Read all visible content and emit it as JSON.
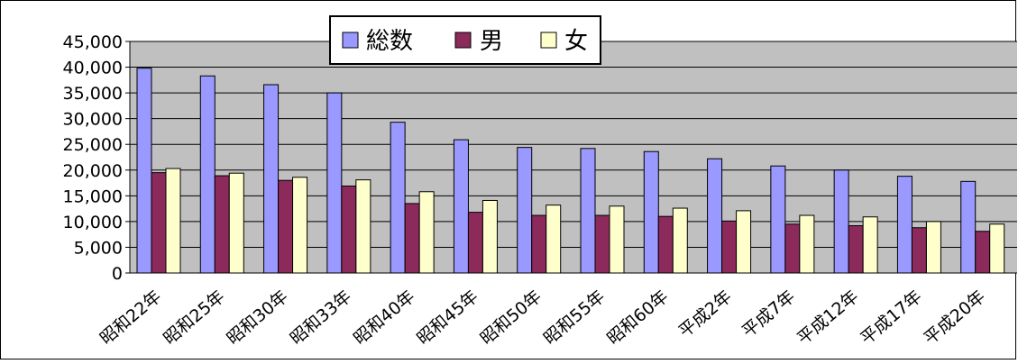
{
  "chart_data": {
    "type": "bar",
    "title": "",
    "xlabel": "",
    "ylabel": "",
    "ylim": [
      0,
      45000
    ],
    "y_ticks": [
      0,
      5000,
      10000,
      15000,
      20000,
      25000,
      30000,
      35000,
      40000,
      45000
    ],
    "y_tick_labels": [
      "0",
      "5,000",
      "10,000",
      "15,000",
      "20,000",
      "25,000",
      "30,000",
      "35,000",
      "40,000",
      "45,000"
    ],
    "grid": true,
    "legend_position": "top-center",
    "categories": [
      "昭和22年",
      "昭和25年",
      "昭和30年",
      "昭和33年",
      "昭和40年",
      "昭和45年",
      "昭和50年",
      "昭和55年",
      "昭和60年",
      "平成2年",
      "平成7年",
      "平成12年",
      "平成17年",
      "平成20年"
    ],
    "series": [
      {
        "name": "総数",
        "color": "#9999ff",
        "values": [
          39800,
          38300,
          36600,
          35000,
          29300,
          25900,
          24400,
          24200,
          23600,
          22200,
          20800,
          20000,
          18800,
          17800
        ]
      },
      {
        "name": "男",
        "color": "#8b2a5b",
        "values": [
          19500,
          18900,
          18000,
          16900,
          13500,
          11800,
          11200,
          11200,
          11000,
          10100,
          9500,
          9200,
          8800,
          8100
        ]
      },
      {
        "name": "女",
        "color": "#ffffcc",
        "values": [
          20300,
          19400,
          18600,
          18100,
          15800,
          14100,
          13200,
          13000,
          12600,
          12100,
          11200,
          10900,
          10000,
          9500
        ]
      }
    ]
  }
}
